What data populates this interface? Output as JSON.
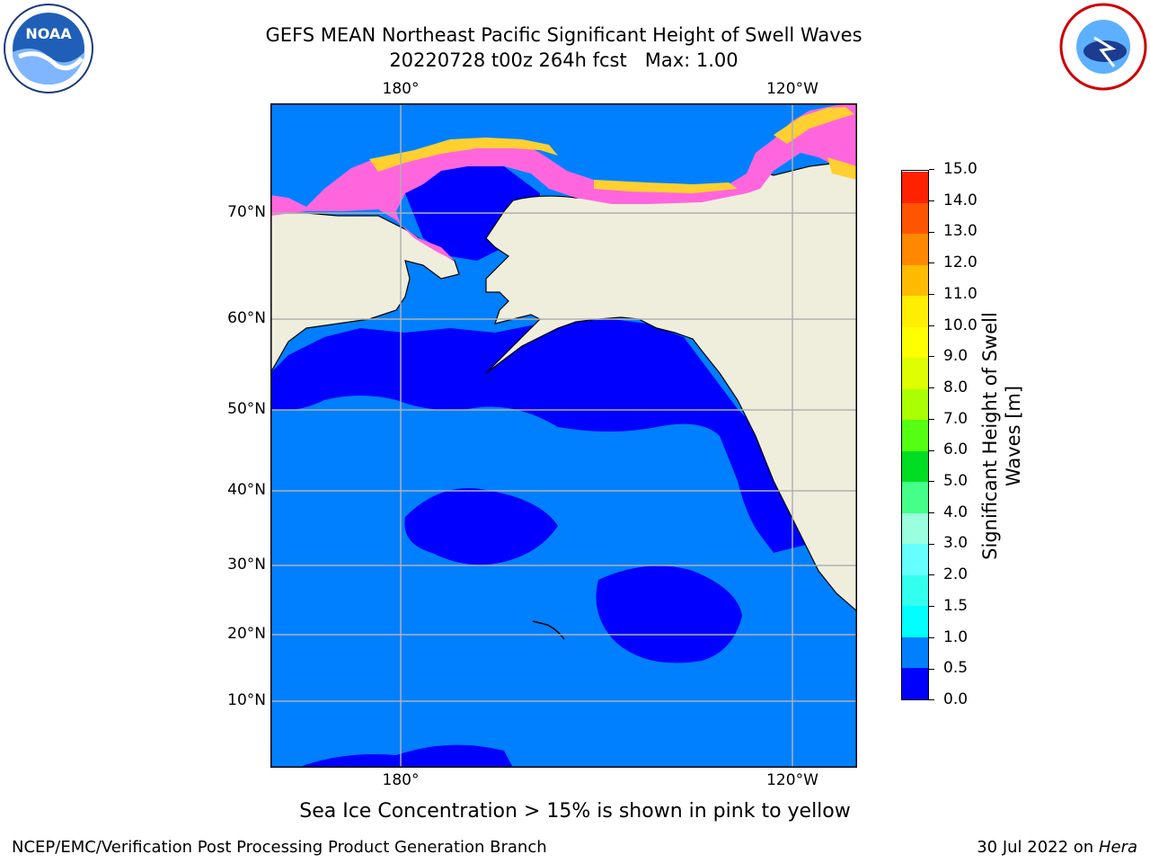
{
  "title": {
    "line1": "GEFS MEAN Northeast Pacific Significant Height of Swell Waves",
    "line2": "20220728 t00z 264h fcst   Max: 1.00"
  },
  "logos": {
    "left": {
      "text": "NOAA",
      "icon": "noaa-logo-icon"
    },
    "right": {
      "icon": "national-weather-service-logo-icon"
    }
  },
  "map": {
    "lon_labels_top": [
      "180°",
      "120°W"
    ],
    "lon_labels_bottom": [
      "180°",
      "120°W"
    ],
    "lat_labels": [
      "70°N",
      "60°N",
      "50°N",
      "40°N",
      "30°N",
      "20°N",
      "10°N"
    ],
    "colors": {
      "land": "#efeedd",
      "ocean_low": "#0000ff",
      "ocean_mid": "#0080ff",
      "ice_pink": "#ff66dd",
      "ice_orange": "#ffb030",
      "ice_yellow": "#ffee00",
      "grid": "#b0b0b0"
    }
  },
  "colorbar": {
    "label": "Significant Height of Swell Waves [m]",
    "ticks": [
      "0.0",
      "0.5",
      "1.0",
      "1.5",
      "2.0",
      "3.0",
      "4.0",
      "5.0",
      "6.0",
      "7.0",
      "8.0",
      "9.0",
      "10.0",
      "11.0",
      "12.0",
      "13.0",
      "14.0",
      "15.0"
    ],
    "colors": [
      "#0000ff",
      "#0080ff",
      "#00ffff",
      "#33ffee",
      "#66ffff",
      "#99ffdd",
      "#44ff88",
      "#00dd22",
      "#55ff11",
      "#aaff00",
      "#ddff00",
      "#ffff00",
      "#ffee00",
      "#ffbb00",
      "#ff8800",
      "#ff5500",
      "#ff2200"
    ]
  },
  "note": "Sea Ice Concentration > 15% is shown in pink to yellow",
  "footer": {
    "left": "NCEP/EMC/Verification Post Processing Product Generation Branch",
    "date": "30 Jul 2022 on",
    "machine": "Hera"
  }
}
